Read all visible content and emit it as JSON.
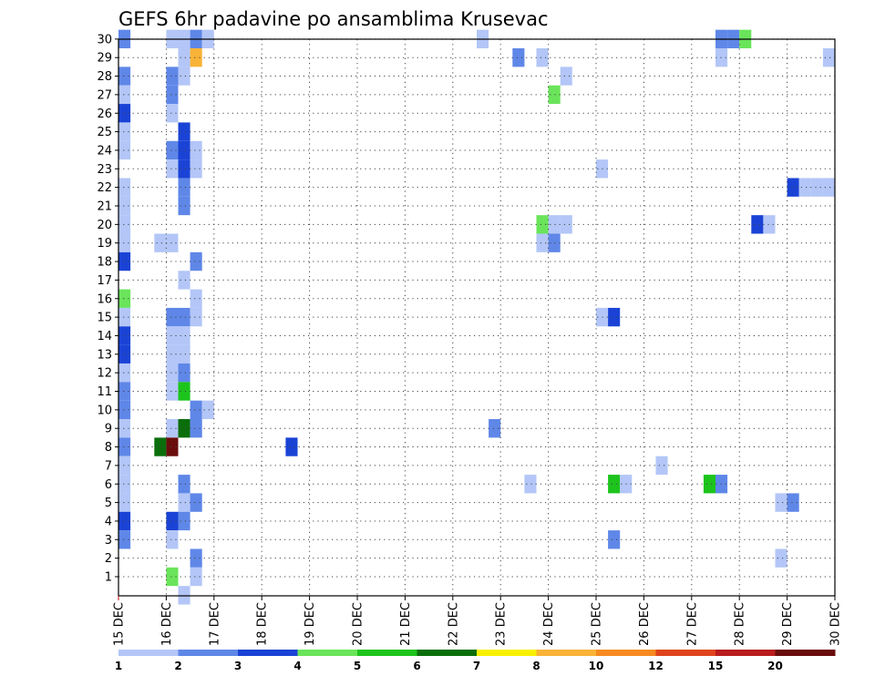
{
  "chart_data": {
    "type": "heatmap",
    "title": "GEFS 6hr padavine po ansamblima Krusevac",
    "y_categories": [
      "1",
      "2",
      "3",
      "4",
      "5",
      "6",
      "7",
      "8",
      "9",
      "10",
      "11",
      "12",
      "13",
      "14",
      "15",
      "16",
      "17",
      "18",
      "19",
      "20",
      "21",
      "22",
      "23",
      "24",
      "25",
      "26",
      "27",
      "28",
      "29",
      "30"
    ],
    "x_tick_labels": [
      "15 DEC",
      "16 DEC",
      "17 DEC",
      "18 DEC",
      "19 DEC",
      "20 DEC",
      "21 DEC",
      "22 DEC",
      "23 DEC",
      "24 DEC",
      "25 DEC",
      "26 DEC",
      "27 DEC",
      "28 DEC",
      "29 DEC",
      "30 DEC"
    ],
    "x_steps_per_day": 4,
    "grid": true,
    "colorbar": {
      "levels": [
        "1",
        "2",
        "3",
        "4",
        "5",
        "6",
        "7",
        "8",
        "10",
        "12",
        "15",
        "20"
      ],
      "colors": [
        "#b3c6f7",
        "#5f87e8",
        "#1a43d6",
        "#6ae45a",
        "#1cc41c",
        "#0a6e0a",
        "#f8f000",
        "#f9b336",
        "#f68a20",
        "#e0431c",
        "#b81c1c",
        "#6a0c0c"
      ]
    },
    "cells": [
      {
        "m": 30,
        "s": 0,
        "v": 2
      },
      {
        "m": 30,
        "s": 4,
        "v": 1
      },
      {
        "m": 30,
        "s": 5,
        "v": 1
      },
      {
        "m": 30,
        "s": 6,
        "v": 2
      },
      {
        "m": 30,
        "s": 7,
        "v": 1
      },
      {
        "m": 30,
        "s": 30,
        "v": 1
      },
      {
        "m": 30,
        "s": 50,
        "v": 2
      },
      {
        "m": 30,
        "s": 51,
        "v": 2
      },
      {
        "m": 30,
        "s": 52,
        "v": 4
      },
      {
        "m": 29,
        "s": 5,
        "v": 1
      },
      {
        "m": 29,
        "s": 6,
        "v": 8
      },
      {
        "m": 29,
        "s": 33,
        "v": 2
      },
      {
        "m": 29,
        "s": 35,
        "v": 1
      },
      {
        "m": 29,
        "s": 50,
        "v": 1
      },
      {
        "m": 29,
        "s": 59,
        "v": 1
      },
      {
        "m": 28,
        "s": 0,
        "v": 2
      },
      {
        "m": 28,
        "s": 4,
        "v": 2
      },
      {
        "m": 28,
        "s": 5,
        "v": 1
      },
      {
        "m": 28,
        "s": 37,
        "v": 1
      },
      {
        "m": 27,
        "s": 0,
        "v": 1
      },
      {
        "m": 27,
        "s": 4,
        "v": 2
      },
      {
        "m": 27,
        "s": 36,
        "v": 4
      },
      {
        "m": 26,
        "s": 0,
        "v": 3
      },
      {
        "m": 26,
        "s": 4,
        "v": 1
      },
      {
        "m": 25,
        "s": 0,
        "v": 1
      },
      {
        "m": 25,
        "s": 5,
        "v": 3
      },
      {
        "m": 24,
        "s": 0,
        "v": 1
      },
      {
        "m": 24,
        "s": 4,
        "v": 2
      },
      {
        "m": 24,
        "s": 5,
        "v": 3
      },
      {
        "m": 24,
        "s": 6,
        "v": 1
      },
      {
        "m": 23,
        "s": 4,
        "v": 1
      },
      {
        "m": 23,
        "s": 5,
        "v": 3
      },
      {
        "m": 23,
        "s": 6,
        "v": 1
      },
      {
        "m": 23,
        "s": 40,
        "v": 1
      },
      {
        "m": 22,
        "s": 0,
        "v": 1
      },
      {
        "m": 22,
        "s": 5,
        "v": 2
      },
      {
        "m": 22,
        "s": 56,
        "v": 3
      },
      {
        "m": 22,
        "s": 57,
        "v": 1
      },
      {
        "m": 22,
        "s": 58,
        "v": 1
      },
      {
        "m": 22,
        "s": 59,
        "v": 1
      },
      {
        "m": 21,
        "s": 0,
        "v": 1
      },
      {
        "m": 21,
        "s": 5,
        "v": 2
      },
      {
        "m": 20,
        "s": 0,
        "v": 1
      },
      {
        "m": 20,
        "s": 35,
        "v": 4
      },
      {
        "m": 20,
        "s": 36,
        "v": 1
      },
      {
        "m": 20,
        "s": 37,
        "v": 1
      },
      {
        "m": 20,
        "s": 53,
        "v": 3
      },
      {
        "m": 20,
        "s": 54,
        "v": 1
      },
      {
        "m": 19,
        "s": 0,
        "v": 1
      },
      {
        "m": 19,
        "s": 3,
        "v": 1
      },
      {
        "m": 19,
        "s": 4,
        "v": 1
      },
      {
        "m": 19,
        "s": 35,
        "v": 1
      },
      {
        "m": 19,
        "s": 36,
        "v": 2
      },
      {
        "m": 18,
        "s": 0,
        "v": 3
      },
      {
        "m": 18,
        "s": 6,
        "v": 2
      },
      {
        "m": 17,
        "s": 5,
        "v": 1
      },
      {
        "m": 16,
        "s": 0,
        "v": 4
      },
      {
        "m": 16,
        "s": 6,
        "v": 1
      },
      {
        "m": 15,
        "s": 0,
        "v": 1
      },
      {
        "m": 15,
        "s": 4,
        "v": 2
      },
      {
        "m": 15,
        "s": 5,
        "v": 2
      },
      {
        "m": 15,
        "s": 6,
        "v": 1
      },
      {
        "m": 15,
        "s": 40,
        "v": 1
      },
      {
        "m": 15,
        "s": 41,
        "v": 3
      },
      {
        "m": 14,
        "s": 0,
        "v": 3
      },
      {
        "m": 14,
        "s": 4,
        "v": 1
      },
      {
        "m": 14,
        "s": 5,
        "v": 1
      },
      {
        "m": 13,
        "s": 0,
        "v": 3
      },
      {
        "m": 13,
        "s": 4,
        "v": 1
      },
      {
        "m": 13,
        "s": 5,
        "v": 1
      },
      {
        "m": 12,
        "s": 0,
        "v": 1
      },
      {
        "m": 12,
        "s": 4,
        "v": 1
      },
      {
        "m": 12,
        "s": 5,
        "v": 2
      },
      {
        "m": 11,
        "s": 0,
        "v": 2
      },
      {
        "m": 11,
        "s": 4,
        "v": 1
      },
      {
        "m": 11,
        "s": 5,
        "v": 5
      },
      {
        "m": 10,
        "s": 0,
        "v": 2
      },
      {
        "m": 10,
        "s": 6,
        "v": 2
      },
      {
        "m": 10,
        "s": 7,
        "v": 1
      },
      {
        "m": 9,
        "s": 0,
        "v": 1
      },
      {
        "m": 9,
        "s": 4,
        "v": 1
      },
      {
        "m": 9,
        "s": 5,
        "v": 6
      },
      {
        "m": 9,
        "s": 6,
        "v": 2
      },
      {
        "m": 9,
        "s": 31,
        "v": 2
      },
      {
        "m": 8,
        "s": 0,
        "v": 2
      },
      {
        "m": 8,
        "s": 3,
        "v": 6
      },
      {
        "m": 8,
        "s": 4,
        "v": 20
      },
      {
        "m": 8,
        "s": 14,
        "v": 3
      },
      {
        "m": 7,
        "s": 0,
        "v": 1
      },
      {
        "m": 7,
        "s": 45,
        "v": 1
      },
      {
        "m": 6,
        "s": 0,
        "v": 1
      },
      {
        "m": 6,
        "s": 5,
        "v": 2
      },
      {
        "m": 6,
        "s": 34,
        "v": 1
      },
      {
        "m": 6,
        "s": 41,
        "v": 5
      },
      {
        "m": 6,
        "s": 42,
        "v": 1
      },
      {
        "m": 6,
        "s": 49,
        "v": 5
      },
      {
        "m": 6,
        "s": 50,
        "v": 2
      },
      {
        "m": 5,
        "s": 0,
        "v": 1
      },
      {
        "m": 5,
        "s": 5,
        "v": 1
      },
      {
        "m": 5,
        "s": 6,
        "v": 2
      },
      {
        "m": 5,
        "s": 55,
        "v": 1
      },
      {
        "m": 5,
        "s": 56,
        "v": 2
      },
      {
        "m": 4,
        "s": 0,
        "v": 3
      },
      {
        "m": 4,
        "s": 4,
        "v": 3
      },
      {
        "m": 4,
        "s": 5,
        "v": 2
      },
      {
        "m": 3,
        "s": 0,
        "v": 2
      },
      {
        "m": 3,
        "s": 4,
        "v": 1
      },
      {
        "m": 3,
        "s": 41,
        "v": 2
      },
      {
        "m": 2,
        "s": 6,
        "v": 2
      },
      {
        "m": 2,
        "s": 55,
        "v": 1
      },
      {
        "m": 1,
        "s": 4,
        "v": 4
      },
      {
        "m": 1,
        "s": 6,
        "v": 1
      },
      {
        "m": 0,
        "s": 5,
        "v": 1
      }
    ]
  }
}
